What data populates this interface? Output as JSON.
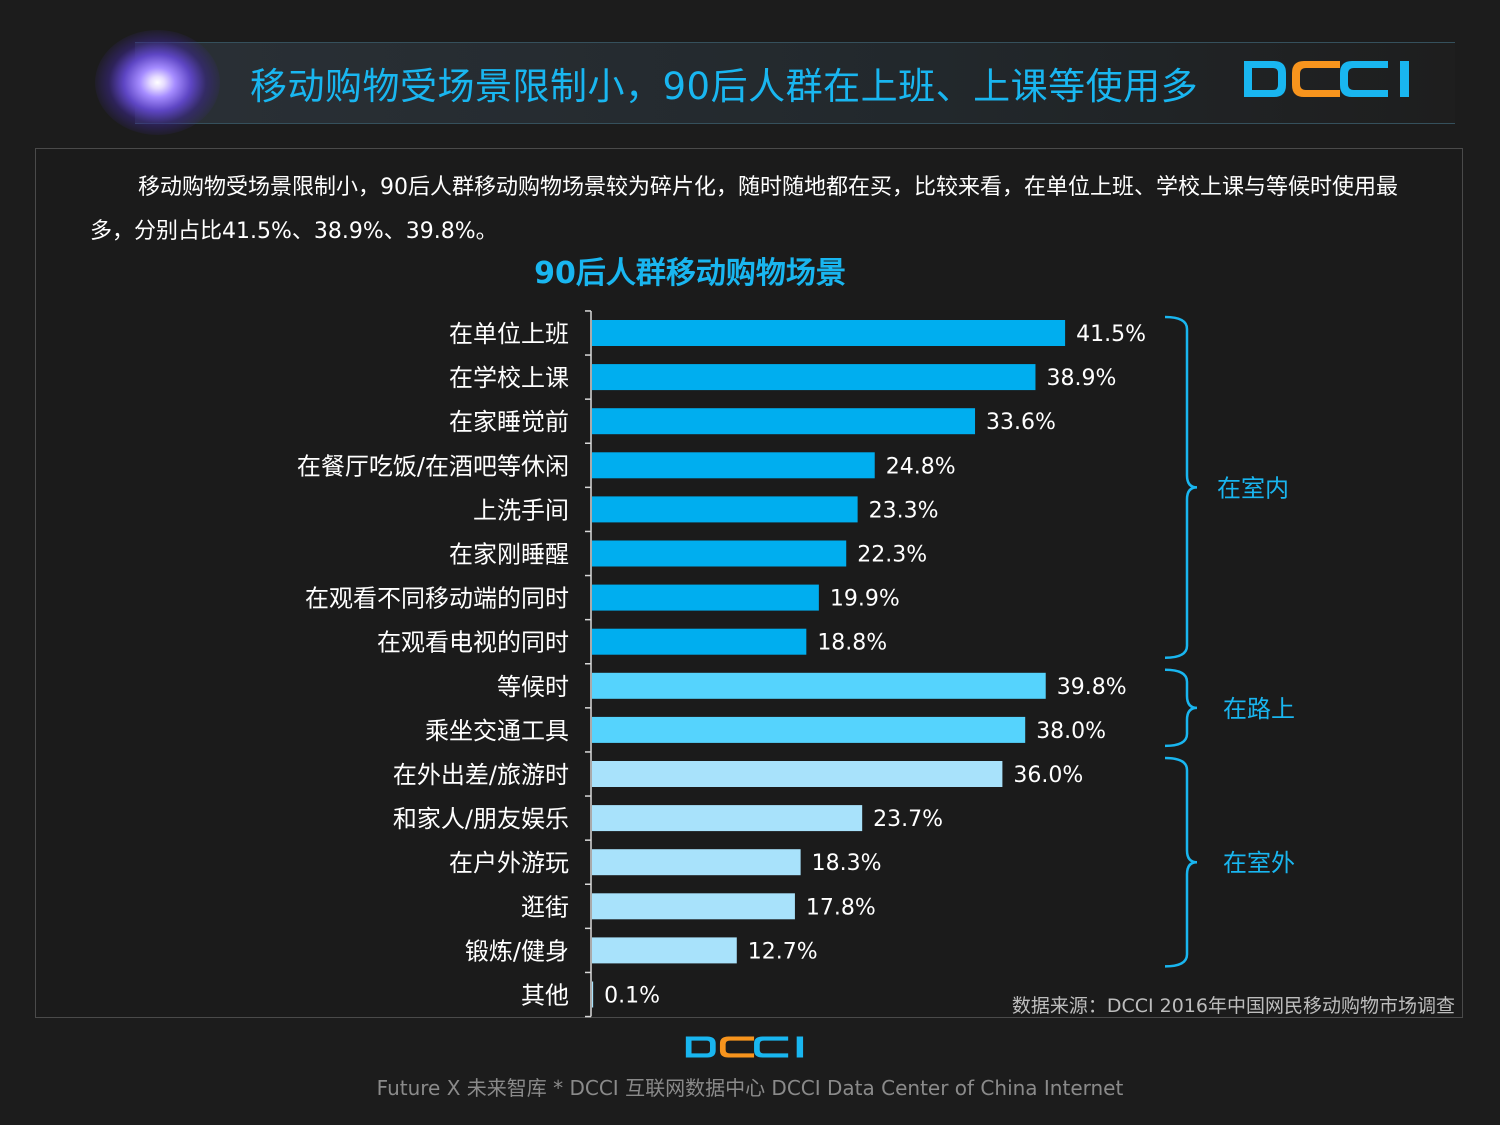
{
  "header": {
    "title": "移动购物受场景限制小，90后人群在上班、上课等使用多",
    "logo_text": "DCCI"
  },
  "intro": {
    "paragraph": "移动购物受场景限制小，90后人群移动购物场景较为碎片化，随时随地都在买，比较来看，在单位上班、学校上课与等候时使用最多，分别占比41.5%、38.9%、39.8%。"
  },
  "colors": {
    "accent": "#19b6f0",
    "indoor": "#00aeef",
    "onroad": "#55d3fd",
    "outdoor": "#a8e2fb",
    "background": "#1c1c1c"
  },
  "chart_data": {
    "type": "bar",
    "orientation": "horizontal",
    "title": "90后人群移动购物场景",
    "unit": "%",
    "categories": [
      "在单位上班",
      "在学校上课",
      "在家睡觉前",
      "在餐厅吃饭/在酒吧等休闲",
      "上洗手间",
      "在家刚睡醒",
      "在观看不同移动端的同时",
      "在观看电视的同时",
      "等候时",
      "乘坐交通工具",
      "在外出差/旅游时",
      "和家人/朋友娱乐",
      "在户外游玩",
      "逛街",
      "锻炼/健身",
      "其他"
    ],
    "values": [
      41.5,
      38.9,
      33.6,
      24.8,
      23.3,
      22.3,
      19.9,
      18.8,
      39.8,
      38.0,
      36.0,
      23.7,
      18.3,
      17.8,
      12.7,
      0.1
    ],
    "value_labels": [
      "41.5%",
      "38.9%",
      "33.6%",
      "24.8%",
      "23.3%",
      "22.3%",
      "19.9%",
      "18.8%",
      "39.8%",
      "38.0%",
      "36.0%",
      "23.7%",
      "18.3%",
      "17.8%",
      "12.7%",
      "0.1%"
    ],
    "groups": [
      {
        "name": "在室内",
        "start": 0,
        "end": 7,
        "color": "#00aeef"
      },
      {
        "name": "在路上",
        "start": 8,
        "end": 9,
        "color": "#55d3fd"
      },
      {
        "name": "在室外",
        "start": 10,
        "end": 14,
        "color": "#a8e2fb"
      }
    ],
    "xlim": [
      0,
      50
    ],
    "source": "数据来源：DCCI 2016年中国网民移动购物市场调查"
  },
  "footer": {
    "logo_text": "DCCI",
    "text": "Future X 未来智库 * DCCI 互联网数据中心 DCCI Data Center of China Internet"
  }
}
